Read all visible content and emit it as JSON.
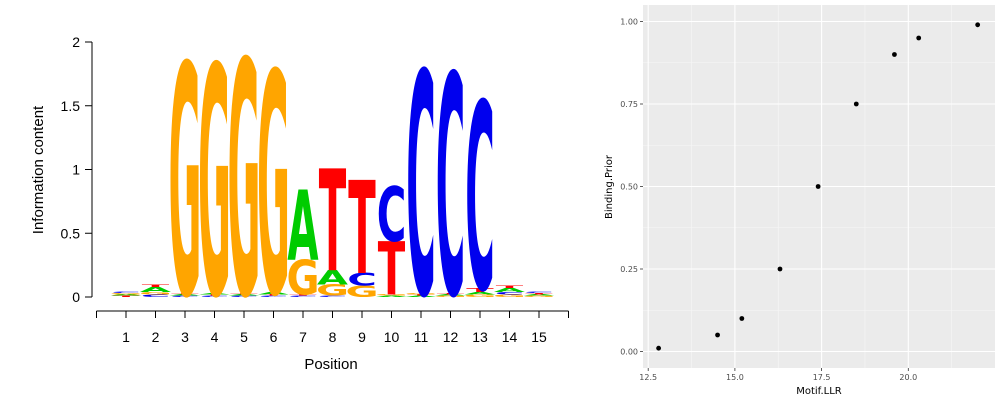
{
  "chart_data": [
    {
      "type": "sequence_logo",
      "xlabel": "Position",
      "ylabel": "Information content",
      "ylim": [
        0,
        2
      ],
      "yticks": [
        "0",
        "0.5",
        "1",
        "1.5",
        "2"
      ],
      "positions": [
        "1",
        "2",
        "3",
        "4",
        "5",
        "6",
        "7",
        "8",
        "9",
        "10",
        "11",
        "12",
        "13",
        "14",
        "15"
      ],
      "colors": {
        "A": "#00cc00",
        "C": "#0000ee",
        "G": "#ffa500",
        "T": "#ff0000"
      },
      "letters": [
        [
          {
            "b": "T",
            "h": 0.01
          },
          {
            "b": "A",
            "h": 0.01
          },
          {
            "b": "G",
            "h": 0.01
          },
          {
            "b": "C",
            "h": 0.01
          }
        ],
        [
          {
            "b": "C",
            "h": 0.02
          },
          {
            "b": "G",
            "h": 0.02
          },
          {
            "b": "A",
            "h": 0.04
          },
          {
            "b": "T",
            "h": 0.02
          }
        ],
        [
          {
            "b": "C",
            "h": 0.01
          },
          {
            "b": "A",
            "h": 0.01
          },
          {
            "b": "T",
            "h": 0.01
          },
          {
            "b": "G",
            "h": 1.81
          }
        ],
        [
          {
            "b": "C",
            "h": 0.01
          },
          {
            "b": "T",
            "h": 0.01
          },
          {
            "b": "A",
            "h": 0.01
          },
          {
            "b": "G",
            "h": 1.8
          }
        ],
        [
          {
            "b": "C",
            "h": 0.01
          },
          {
            "b": "A",
            "h": 0.01
          },
          {
            "b": "T",
            "h": 0.01
          },
          {
            "b": "G",
            "h": 1.84
          }
        ],
        [
          {
            "b": "C",
            "h": 0.01
          },
          {
            "b": "T",
            "h": 0.01
          },
          {
            "b": "A",
            "h": 0.02
          },
          {
            "b": "G",
            "h": 1.74
          }
        ],
        [
          {
            "b": "C",
            "h": 0.01
          },
          {
            "b": "T",
            "h": 0.01
          },
          {
            "b": "G",
            "h": 0.27
          },
          {
            "b": "A",
            "h": 0.55
          }
        ],
        [
          {
            "b": "C",
            "h": 0.01
          },
          {
            "b": "G",
            "h": 0.09
          },
          {
            "b": "A",
            "h": 0.11
          },
          {
            "b": "T",
            "h": 0.8
          }
        ],
        [
          {
            "b": "G",
            "h": 0.09
          },
          {
            "b": "C",
            "h": 0.1
          },
          {
            "b": "T",
            "h": 0.73
          }
        ],
        [
          {
            "b": "A",
            "h": 0.01
          },
          {
            "b": "G",
            "h": 0.01
          },
          {
            "b": "T",
            "h": 0.42
          },
          {
            "b": "C",
            "h": 0.43
          }
        ],
        [
          {
            "b": "A",
            "h": 0.01
          },
          {
            "b": "T",
            "h": 0.01
          },
          {
            "b": "G",
            "h": 0.01
          },
          {
            "b": "C",
            "h": 1.75
          }
        ],
        [
          {
            "b": "G",
            "h": 0.01
          },
          {
            "b": "A",
            "h": 0.01
          },
          {
            "b": "T",
            "h": 0.01
          },
          {
            "b": "C",
            "h": 1.73
          }
        ],
        [
          {
            "b": "G",
            "h": 0.02
          },
          {
            "b": "A",
            "h": 0.02
          },
          {
            "b": "T",
            "h": 0.03
          },
          {
            "b": "C",
            "h": 1.47
          }
        ],
        [
          {
            "b": "G",
            "h": 0.02
          },
          {
            "b": "C",
            "h": 0.02
          },
          {
            "b": "A",
            "h": 0.03
          },
          {
            "b": "T",
            "h": 0.02
          }
        ],
        [
          {
            "b": "G",
            "h": 0.01
          },
          {
            "b": "A",
            "h": 0.01
          },
          {
            "b": "T",
            "h": 0.01
          },
          {
            "b": "C",
            "h": 0.01
          }
        ]
      ]
    },
    {
      "type": "scatter",
      "xlabel": "Motif.LLR",
      "ylabel": "Binding.Prior",
      "xlim": [
        12.35,
        22.5
      ],
      "ylim": [
        -0.05,
        1.05
      ],
      "xticks": [
        12.5,
        15.0,
        17.5,
        20.0
      ],
      "xtick_labels": [
        "12.5",
        "15.0",
        "17.5",
        "20.0"
      ],
      "yticks": [
        0.0,
        0.25,
        0.5,
        0.75,
        1.0
      ],
      "ytick_labels": [
        "0.00",
        "0.25",
        "0.50",
        "0.75",
        "1.00"
      ],
      "grid": true,
      "points": [
        {
          "x": 12.8,
          "y": 0.01
        },
        {
          "x": 14.5,
          "y": 0.05
        },
        {
          "x": 15.2,
          "y": 0.1
        },
        {
          "x": 16.3,
          "y": 0.25
        },
        {
          "x": 17.4,
          "y": 0.5
        },
        {
          "x": 18.5,
          "y": 0.75
        },
        {
          "x": 19.6,
          "y": 0.9
        },
        {
          "x": 20.3,
          "y": 0.95
        },
        {
          "x": 22.0,
          "y": 0.99
        }
      ]
    }
  ]
}
